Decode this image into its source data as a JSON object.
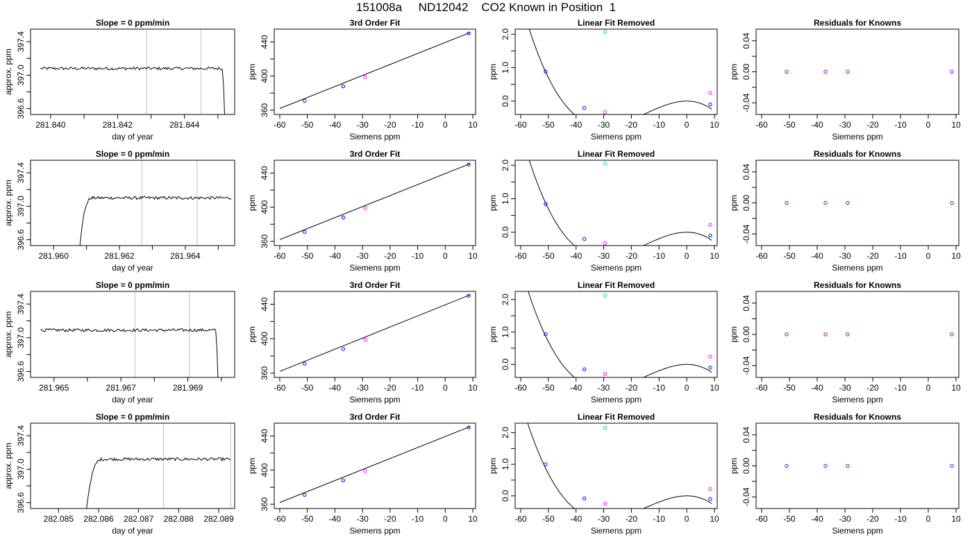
{
  "title": "151008a     ND12042    CO2 Known in Position  1",
  "colors": {
    "frame": "#000000",
    "vline": "#bfbfbf",
    "known": "#0000ff",
    "reference": "#ff00ff",
    "unknown": "#00cccc",
    "residual": "#8000c0"
  },
  "chart_data": [
    {
      "type": "line",
      "title": "Slope =  0  ppm/min",
      "xlabel": "day of year",
      "ylabel": "approx. ppm",
      "xlim": [
        281.8394,
        281.8455
      ],
      "ylim": [
        396.53,
        397.55
      ],
      "xticks": [
        281.84,
        281.842,
        281.844
      ],
      "xtick_labels": [
        "281.840",
        "281.842",
        "281.844"
      ],
      "xticks_minor": [
        281.841,
        281.843,
        281.845
      ],
      "yticks": [
        396.6,
        397.0,
        397.4
      ],
      "ytick_labels": [
        "396.6",
        "397.0",
        "397.4"
      ],
      "vlines": [
        281.84287,
        281.84449
      ],
      "trace": {
        "x0": 281.8397,
        "x1": 281.8452,
        "n": 160,
        "level": 397.08,
        "noise": 0.018,
        "rise_end": 0.0,
        "drop_start": 0.985,
        "drop_to": 396.53
      }
    },
    {
      "type": "scatter",
      "title": "3rd Order Fit",
      "xlabel": "Siemens ppm",
      "ylabel": "ppm",
      "xlim": [
        -62,
        11
      ],
      "ylim": [
        355,
        455
      ],
      "xticks": [
        -60,
        -50,
        -40,
        -30,
        -20,
        -10,
        0,
        10
      ],
      "xtick_labels": [
        "-60",
        "-50",
        "-40",
        "-30",
        "-20",
        "-10",
        "0",
        "10"
      ],
      "yticks": [
        360,
        400,
        440
      ],
      "ytick_labels": [
        "360",
        "400",
        "440"
      ],
      "fit_line": {
        "x": [
          -60,
          9
        ],
        "y": [
          362,
          451
        ]
      },
      "points": [
        {
          "x": -51,
          "y": 371,
          "role": "known"
        },
        {
          "x": -37,
          "y": 388,
          "role": "known"
        },
        {
          "x": -29,
          "y": 399,
          "role": "reference"
        },
        {
          "x": 8.5,
          "y": 450,
          "role": "known"
        }
      ]
    },
    {
      "type": "scatter",
      "title": "Linear Fit Removed",
      "xlabel": "Siemens ppm",
      "ylabel": "ppm",
      "xlim": [
        -62,
        11
      ],
      "ylim": [
        -0.4,
        2.15
      ],
      "xticks": [
        -60,
        -50,
        -40,
        -30,
        -20,
        -10,
        0,
        10
      ],
      "xtick_labels": [
        "-60",
        "-50",
        "-40",
        "-30",
        "-20",
        "-10",
        "0",
        "10"
      ],
      "yticks": [
        0.0,
        1.0,
        2.0
      ],
      "ytick_labels": [
        "0.0",
        "1.0",
        "2.0"
      ],
      "curve": {
        "x_from": -58,
        "x_to": 9,
        "coef": [
          0,
          0,
          -0.0025,
          -5.56e-05
        ]
      },
      "points": [
        {
          "x": -51,
          "y": 0.88,
          "role": "known"
        },
        {
          "x": -37,
          "y": -0.2,
          "role": "known"
        },
        {
          "x": -29.5,
          "y": -0.33,
          "role": "reference"
        },
        {
          "x": -29.5,
          "y": 2.07,
          "role": "unknown"
        },
        {
          "x": 8.5,
          "y": 0.24,
          "role": "reference"
        },
        {
          "x": 8.5,
          "y": -0.1,
          "role": "known"
        }
      ]
    },
    {
      "type": "scatter",
      "title": "Residuals for Knowns",
      "xlabel": "Siemens ppm",
      "ylabel": "ppm",
      "xlim": [
        -62,
        11
      ],
      "ylim": [
        -0.055,
        0.055
      ],
      "xticks": [
        -60,
        -50,
        -40,
        -30,
        -20,
        -10,
        0,
        10
      ],
      "xtick_labels": [
        "-60",
        "-50",
        "-40",
        "-30",
        "-20",
        "-10",
        "0",
        "10"
      ],
      "yticks": [
        -0.04,
        0.0,
        0.04
      ],
      "ytick_labels": [
        "-0.04",
        "0.00",
        "0.04"
      ],
      "points": [
        {
          "x": -51,
          "y": 0,
          "role": "residual"
        },
        {
          "x": -37,
          "y": 0,
          "role": "residual"
        },
        {
          "x": -29,
          "y": 0,
          "role": "residual"
        },
        {
          "x": 8.5,
          "y": 0,
          "role": "residual"
        }
      ]
    },
    {
      "type": "line",
      "title": "Slope =  0  ppm/min",
      "xlabel": "day of year",
      "ylabel": "approx. ppm",
      "xlim": [
        281.9593,
        281.9655
      ],
      "ylim": [
        396.53,
        397.55
      ],
      "xticks": [
        281.96,
        281.962,
        281.964
      ],
      "xtick_labels": [
        "281.960",
        "281.962",
        "281.964"
      ],
      "xticks_minor": [
        281.961,
        281.963,
        281.965
      ],
      "yticks": [
        396.6,
        397.0,
        397.4
      ],
      "ytick_labels": [
        "396.6",
        "397.0",
        "397.4"
      ],
      "vlines": [
        281.96268,
        281.96436
      ],
      "trace": {
        "x0": 281.9608,
        "x1": 281.9654,
        "n": 150,
        "level": 397.1,
        "noise": 0.018,
        "rise_end": 0.09,
        "drop_start": 1.01,
        "drop_to": 396.53
      }
    },
    {
      "type": "scatter",
      "title": "3rd Order Fit",
      "xlabel": "Siemens ppm",
      "ylabel": "ppm",
      "xlim": [
        -62,
        11
      ],
      "ylim": [
        355,
        455
      ],
      "xticks": [
        -60,
        -50,
        -40,
        -30,
        -20,
        -10,
        0,
        10
      ],
      "xtick_labels": [
        "-60",
        "-50",
        "-40",
        "-30",
        "-20",
        "-10",
        "0",
        "10"
      ],
      "yticks": [
        360,
        400,
        440
      ],
      "ytick_labels": [
        "360",
        "400",
        "440"
      ],
      "fit_line": {
        "x": [
          -60,
          9
        ],
        "y": [
          362,
          451
        ]
      },
      "points": [
        {
          "x": -51,
          "y": 371,
          "role": "known"
        },
        {
          "x": -37,
          "y": 388,
          "role": "known"
        },
        {
          "x": -29,
          "y": 399,
          "role": "reference"
        },
        {
          "x": 8.5,
          "y": 450,
          "role": "known"
        }
      ]
    },
    {
      "type": "scatter",
      "title": "Linear Fit Removed",
      "xlabel": "Siemens ppm",
      "ylabel": "ppm",
      "xlim": [
        -62,
        11
      ],
      "ylim": [
        -0.4,
        2.15
      ],
      "xticks": [
        -60,
        -50,
        -40,
        -30,
        -20,
        -10,
        0,
        10
      ],
      "xtick_labels": [
        "-60",
        "-50",
        "-40",
        "-30",
        "-20",
        "-10",
        "0",
        "10"
      ],
      "yticks": [
        0.0,
        1.0,
        2.0
      ],
      "ytick_labels": [
        "0.0",
        "1.0",
        "2.0"
      ],
      "curve": {
        "x_from": -58,
        "x_to": 9,
        "coef": [
          0,
          0,
          -0.0025,
          -5.56e-05
        ]
      },
      "points": [
        {
          "x": -51,
          "y": 0.84,
          "role": "known"
        },
        {
          "x": -37,
          "y": -0.2,
          "role": "known"
        },
        {
          "x": -29.5,
          "y": -0.33,
          "role": "reference"
        },
        {
          "x": -29.5,
          "y": 2.05,
          "role": "unknown"
        },
        {
          "x": 8.5,
          "y": 0.22,
          "role": "reference"
        },
        {
          "x": 8.5,
          "y": -0.1,
          "role": "known"
        }
      ]
    },
    {
      "type": "scatter",
      "title": "Residuals for Knowns",
      "xlabel": "Siemens ppm",
      "ylabel": "ppm",
      "xlim": [
        -62,
        11
      ],
      "ylim": [
        -0.055,
        0.055
      ],
      "xticks": [
        -60,
        -50,
        -40,
        -30,
        -20,
        -10,
        0,
        10
      ],
      "xtick_labels": [
        "-60",
        "-50",
        "-40",
        "-30",
        "-20",
        "-10",
        "0",
        "10"
      ],
      "yticks": [
        -0.04,
        0.0,
        0.04
      ],
      "ytick_labels": [
        "-0.04",
        "0.00",
        "0.04"
      ],
      "points": [
        {
          "x": -51,
          "y": 0,
          "role": "residual"
        },
        {
          "x": -37,
          "y": 0,
          "role": "residual"
        },
        {
          "x": -29,
          "y": 0,
          "role": "residual"
        },
        {
          "x": 8.5,
          "y": 0,
          "role": "residual"
        }
      ]
    },
    {
      "type": "line",
      "title": "Slope =  0  ppm/min",
      "xlabel": "day of year",
      "ylabel": "approx. ppm",
      "xlim": [
        281.9643,
        281.9704
      ],
      "ylim": [
        396.53,
        397.55
      ],
      "xticks": [
        281.965,
        281.967,
        281.969
      ],
      "xtick_labels": [
        "281.965",
        "281.967",
        "281.969"
      ],
      "xticks_minor": [
        281.966,
        281.968,
        281.97
      ],
      "yticks": [
        396.6,
        397.0,
        397.4
      ],
      "ytick_labels": [
        "396.6",
        "397.0",
        "397.4"
      ],
      "vlines": [
        281.96742,
        281.96905
      ],
      "trace": {
        "x0": 281.9646,
        "x1": 281.9699,
        "n": 160,
        "level": 397.09,
        "noise": 0.018,
        "rise_end": 0.0,
        "drop_start": 0.985,
        "drop_to": 396.53
      }
    },
    {
      "type": "scatter",
      "title": "3rd Order Fit",
      "xlabel": "Siemens ppm",
      "ylabel": "ppm",
      "xlim": [
        -62,
        11
      ],
      "ylim": [
        355,
        455
      ],
      "xticks": [
        -60,
        -50,
        -40,
        -30,
        -20,
        -10,
        0,
        10
      ],
      "xtick_labels": [
        "-60",
        "-50",
        "-40",
        "-30",
        "-20",
        "-10",
        "0",
        "10"
      ],
      "yticks": [
        360,
        400,
        440
      ],
      "ytick_labels": [
        "360",
        "400",
        "440"
      ],
      "fit_line": {
        "x": [
          -60,
          9
        ],
        "y": [
          362,
          451
        ]
      },
      "points": [
        {
          "x": -51,
          "y": 371,
          "role": "known"
        },
        {
          "x": -37,
          "y": 388,
          "role": "known"
        },
        {
          "x": -29,
          "y": 399,
          "role": "reference"
        },
        {
          "x": 8.5,
          "y": 450,
          "role": "known"
        }
      ]
    },
    {
      "type": "scatter",
      "title": "Linear Fit Removed",
      "xlabel": "Siemens ppm",
      "ylabel": "ppm",
      "xlim": [
        -62,
        11
      ],
      "ylim": [
        -0.4,
        2.25
      ],
      "xticks": [
        -60,
        -50,
        -40,
        -30,
        -20,
        -10,
        0,
        10
      ],
      "xtick_labels": [
        "-60",
        "-50",
        "-40",
        "-30",
        "-20",
        "-10",
        "0",
        "10"
      ],
      "yticks": [
        0.0,
        1.0,
        2.0
      ],
      "ytick_labels": [
        "0.0",
        "1.0",
        "2.0"
      ],
      "curve": {
        "x_from": -58,
        "x_to": 9,
        "coef": [
          0,
          0,
          -0.0025,
          -5.56e-05
        ]
      },
      "points": [
        {
          "x": -51,
          "y": 0.93,
          "role": "known"
        },
        {
          "x": -37,
          "y": -0.15,
          "role": "known"
        },
        {
          "x": -29.5,
          "y": -0.3,
          "role": "reference"
        },
        {
          "x": -29.5,
          "y": 2.12,
          "role": "unknown"
        },
        {
          "x": 8.5,
          "y": 0.24,
          "role": "reference"
        },
        {
          "x": 8.5,
          "y": -0.1,
          "role": "known"
        }
      ]
    },
    {
      "type": "scatter",
      "title": "Residuals for Knowns",
      "xlabel": "Siemens ppm",
      "ylabel": "ppm",
      "xlim": [
        -62,
        11
      ],
      "ylim": [
        -0.055,
        0.055
      ],
      "xticks": [
        -60,
        -50,
        -40,
        -30,
        -20,
        -10,
        0,
        10
      ],
      "xtick_labels": [
        "-60",
        "-50",
        "-40",
        "-30",
        "-20",
        "-10",
        "0",
        "10"
      ],
      "yticks": [
        -0.04,
        0.0,
        0.04
      ],
      "ytick_labels": [
        "-0.04",
        "0.00",
        "0.04"
      ],
      "points": [
        {
          "x": -51,
          "y": 0,
          "role": "residual"
        },
        {
          "x": -37,
          "y": 0,
          "role": "residual"
        },
        {
          "x": -29,
          "y": 0,
          "role": "residual"
        },
        {
          "x": 8.5,
          "y": 0,
          "role": "residual"
        }
      ]
    },
    {
      "type": "line",
      "title": "Slope =  0  ppm/min",
      "xlabel": "day of year",
      "ylabel": "approx. ppm",
      "xlim": [
        282.0843,
        282.0894
      ],
      "ylim": [
        396.53,
        397.55
      ],
      "xticks": [
        282.085,
        282.086,
        282.087,
        282.088,
        282.089
      ],
      "xtick_labels": [
        "282.085",
        "282.086",
        "282.087",
        "282.088",
        "282.089"
      ],
      "yticks": [
        396.6,
        397.0,
        397.4
      ],
      "ytick_labels": [
        "396.6",
        "397.0",
        "397.4"
      ],
      "vlines": [
        282.08762,
        282.0893
      ],
      "trace": {
        "x0": 282.0857,
        "x1": 282.0893,
        "n": 130,
        "level": 397.12,
        "noise": 0.018,
        "rise_end": 0.12,
        "drop_start": 1.01,
        "drop_to": 396.53
      }
    },
    {
      "type": "scatter",
      "title": "3rd Order Fit",
      "xlabel": "Siemens ppm",
      "ylabel": "ppm",
      "xlim": [
        -62,
        11
      ],
      "ylim": [
        355,
        455
      ],
      "xticks": [
        -60,
        -50,
        -40,
        -30,
        -20,
        -10,
        0,
        10
      ],
      "xtick_labels": [
        "-60",
        "-50",
        "-40",
        "-30",
        "-20",
        "-10",
        "0",
        "10"
      ],
      "yticks": [
        360,
        400,
        440
      ],
      "ytick_labels": [
        "360",
        "400",
        "440"
      ],
      "fit_line": {
        "x": [
          -60,
          9
        ],
        "y": [
          362,
          451
        ]
      },
      "points": [
        {
          "x": -51,
          "y": 371,
          "role": "known"
        },
        {
          "x": -37,
          "y": 388,
          "role": "known"
        },
        {
          "x": -29,
          "y": 399,
          "role": "reference"
        },
        {
          "x": 8.5,
          "y": 450,
          "role": "known"
        }
      ]
    },
    {
      "type": "scatter",
      "title": "Linear Fit Removed",
      "xlabel": "Siemens ppm",
      "ylabel": "ppm",
      "xlim": [
        -62,
        11
      ],
      "ylim": [
        -0.4,
        2.3
      ],
      "xticks": [
        -60,
        -50,
        -40,
        -30,
        -20,
        -10,
        0,
        10
      ],
      "xtick_labels": [
        "-60",
        "-50",
        "-40",
        "-30",
        "-20",
        "-10",
        "0",
        "10"
      ],
      "yticks": [
        0.0,
        1.0,
        2.0
      ],
      "ytick_labels": [
        "0.0",
        "1.0",
        "2.0"
      ],
      "curve": {
        "x_from": -58,
        "x_to": 9,
        "coef": [
          0,
          0,
          -0.0025,
          -5.56e-05
        ]
      },
      "points": [
        {
          "x": -51,
          "y": 1.0,
          "role": "known"
        },
        {
          "x": -37,
          "y": -0.08,
          "role": "known"
        },
        {
          "x": -29.5,
          "y": -0.25,
          "role": "reference"
        },
        {
          "x": -29.5,
          "y": 2.15,
          "role": "unknown"
        },
        {
          "x": 8.5,
          "y": 0.22,
          "role": "reference"
        },
        {
          "x": 8.5,
          "y": -0.1,
          "role": "known"
        }
      ]
    },
    {
      "type": "scatter",
      "title": "Residuals for Knowns",
      "xlabel": "Siemens ppm",
      "ylabel": "ppm",
      "xlim": [
        -62,
        11
      ],
      "ylim": [
        -0.055,
        0.055
      ],
      "xticks": [
        -60,
        -50,
        -40,
        -30,
        -20,
        -10,
        0,
        10
      ],
      "xtick_labels": [
        "-60",
        "-50",
        "-40",
        "-30",
        "-20",
        "-10",
        "0",
        "10"
      ],
      "yticks": [
        -0.04,
        0.0,
        0.04
      ],
      "ytick_labels": [
        "-0.04",
        "0.00",
        "0.04"
      ],
      "points": [
        {
          "x": -51,
          "y": 0,
          "role": "residual"
        },
        {
          "x": -37,
          "y": 0,
          "role": "residual"
        },
        {
          "x": -29,
          "y": 0,
          "role": "residual"
        },
        {
          "x": 8.5,
          "y": 0,
          "role": "residual"
        }
      ]
    }
  ]
}
